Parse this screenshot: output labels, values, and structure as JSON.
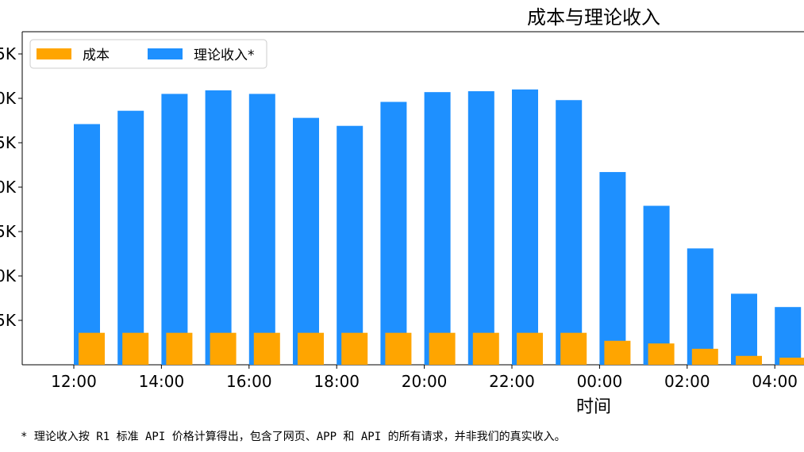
{
  "chart_data": {
    "type": "bar",
    "title": "成本与理论收入",
    "xlabel": "时间",
    "ylabel": "",
    "x_tick_labels": [
      "12:00",
      "14:00",
      "16:00",
      "18:00",
      "20:00",
      "22:00",
      "00:00",
      "02:00",
      "04:00"
    ],
    "y_tick_labels": [
      "5K",
      "0K",
      "5K",
      "0K",
      "5K",
      "0K",
      "5K"
    ],
    "legend": {
      "location": "top-left"
    },
    "grid": false,
    "colors": {
      "cost": "#FFA500",
      "revenue": "#1E90FF"
    },
    "series": [
      {
        "name": "成本",
        "key": "cost",
        "values": [
          0.36,
          0.36,
          0.36,
          0.36,
          0.36,
          0.36,
          0.36,
          0.36,
          0.36,
          0.36,
          0.36,
          0.36,
          0.27,
          0.24,
          0.18,
          0.1,
          0.08
        ]
      },
      {
        "name": "理论收入*",
        "key": "revenue",
        "values": [
          2.71,
          2.86,
          3.05,
          3.09,
          3.05,
          2.78,
          2.69,
          2.96,
          3.07,
          3.08,
          3.1,
          2.98,
          2.17,
          1.79,
          1.31,
          0.8,
          0.65
        ]
      }
    ],
    "bar_times": [
      "12:00",
      "13:00",
      "14:00",
      "15:00",
      "16:00",
      "17:00",
      "18:00",
      "19:00",
      "20:00",
      "21:00",
      "22:00",
      "23:00",
      "00:00",
      "01:00",
      "02:00",
      "03:00",
      "04:00"
    ]
  },
  "footnote": "* 理论收入按 R1 标准 API 价格计算得出，包含了网页、APP 和 API 的所有请求，并非我们的真实收入。"
}
